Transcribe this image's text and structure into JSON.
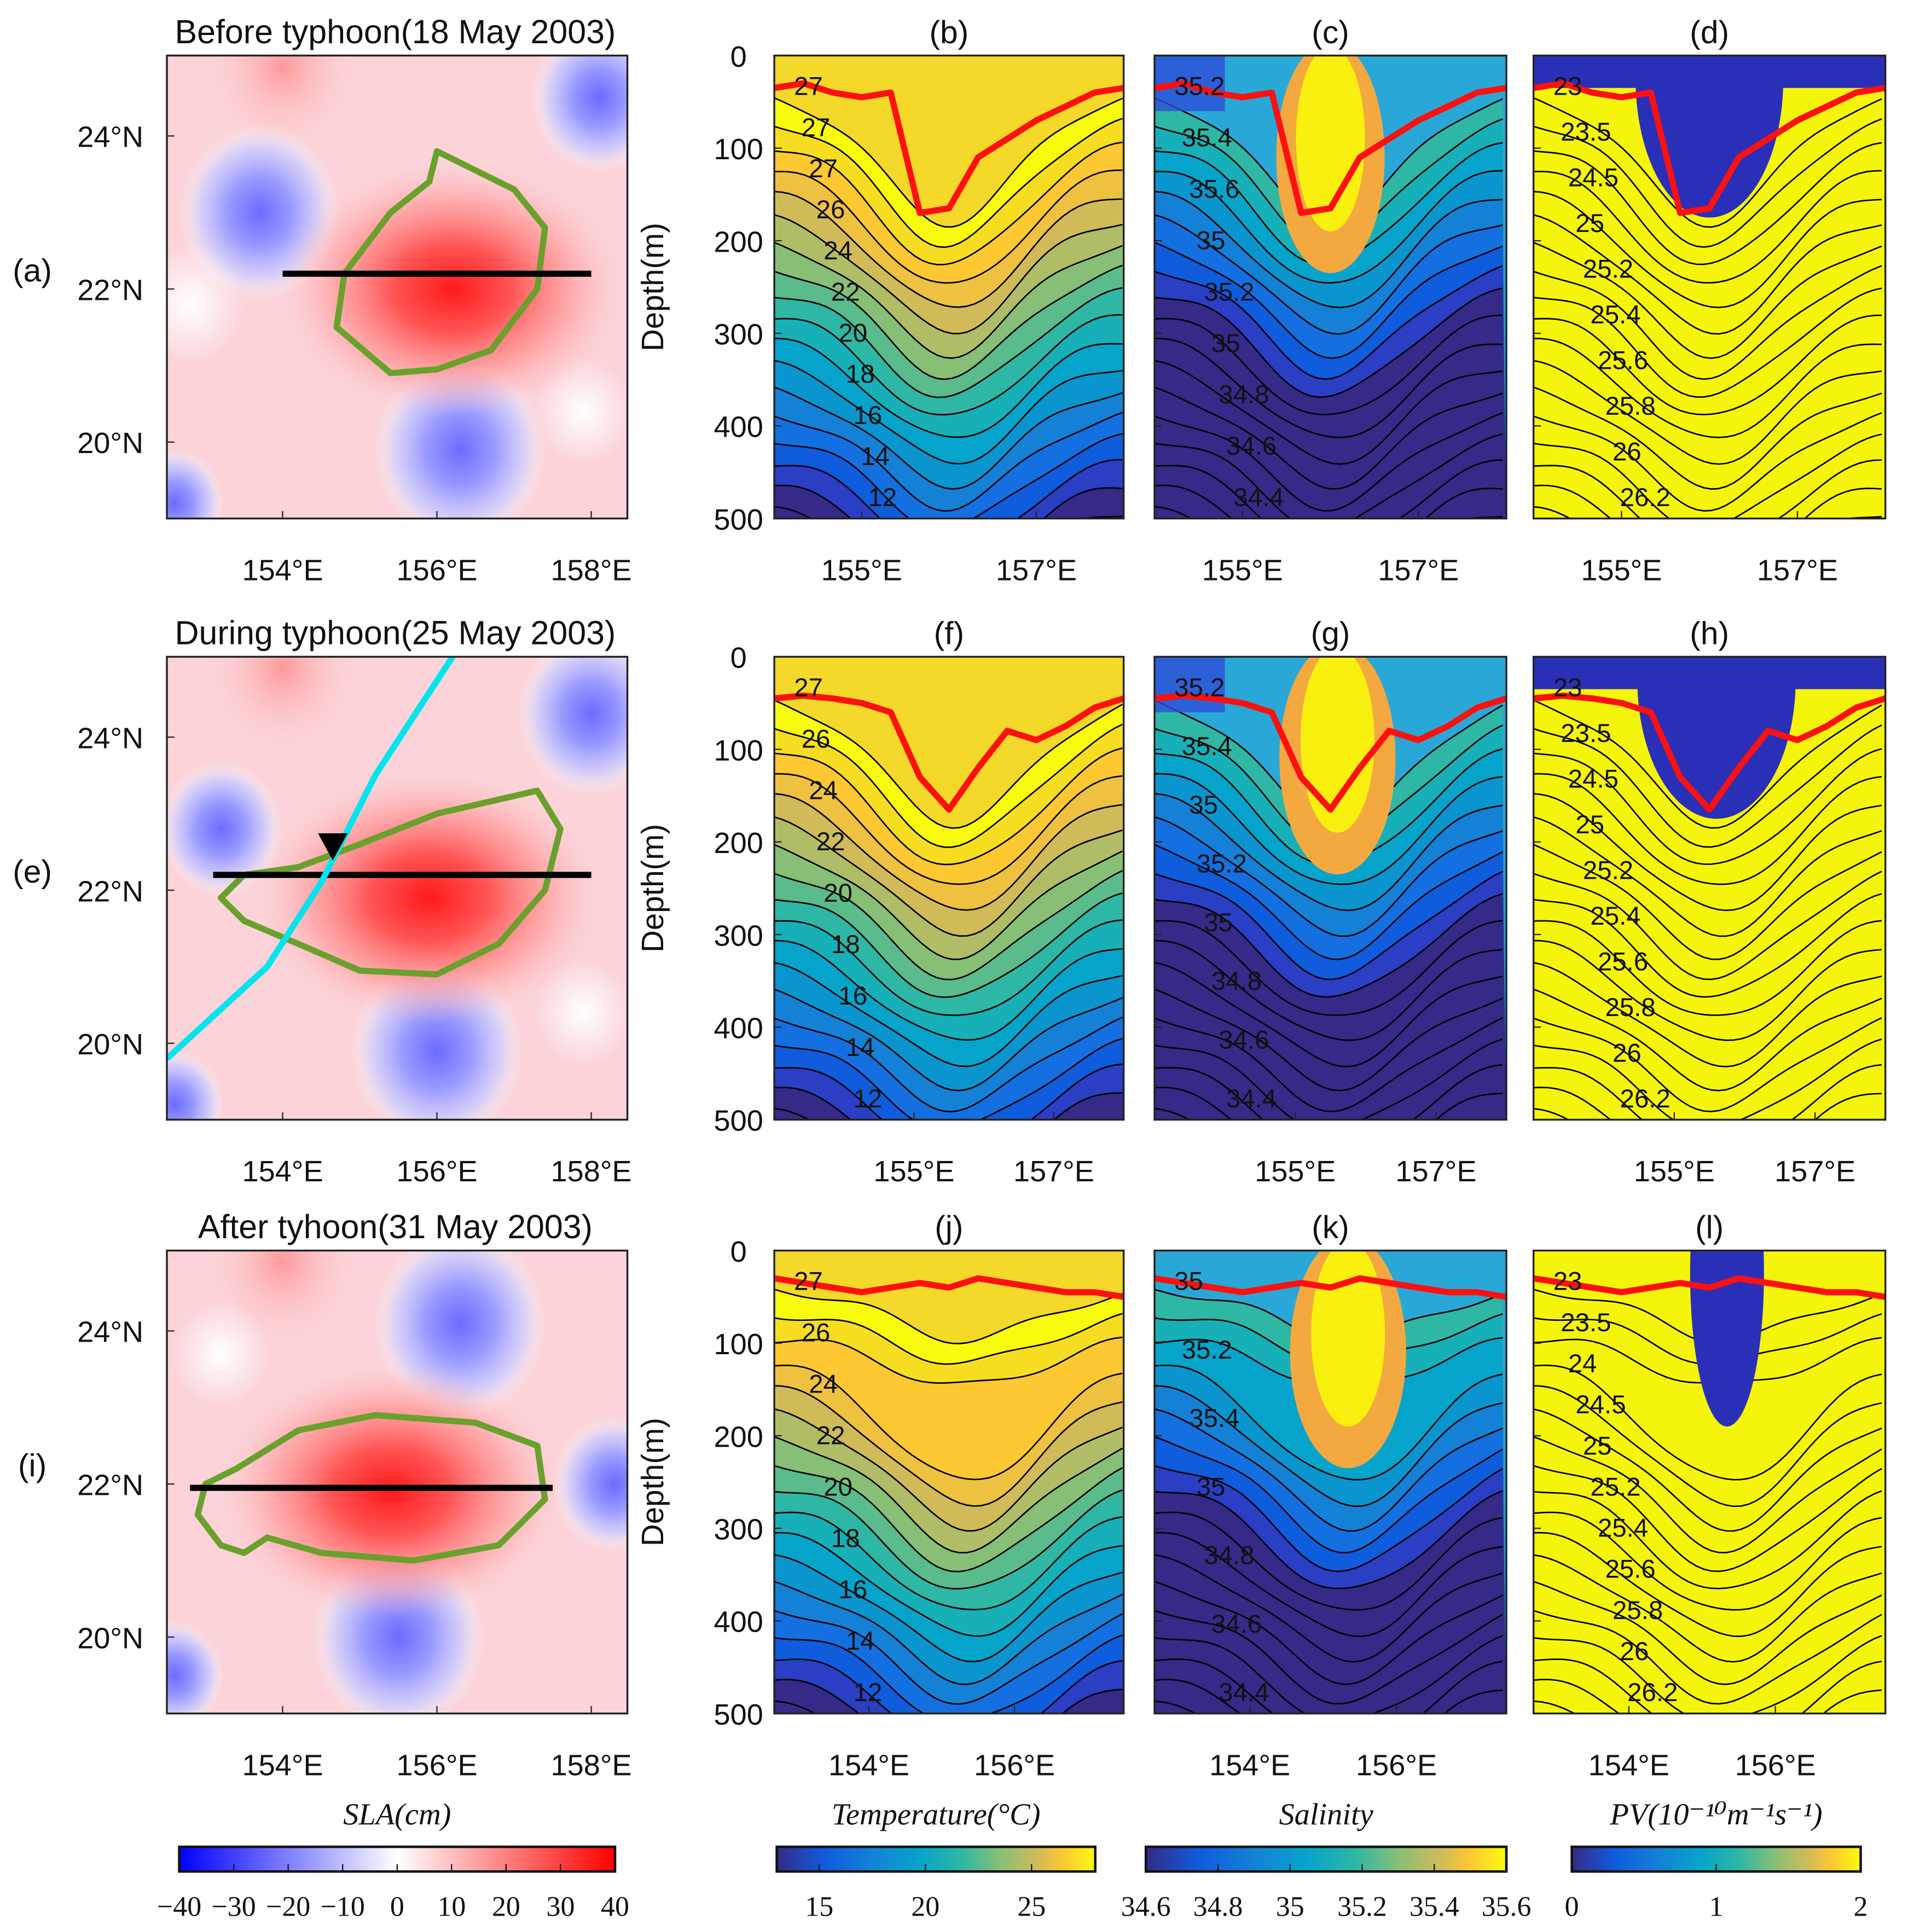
{
  "chart_data": {
    "type": "heatmap",
    "rows": [
      {
        "title": "Before typhoon(18 May 2003)",
        "map_label": "(a)",
        "section_labels": [
          "(b)",
          "(c)",
          "(d)"
        ],
        "section_lon_ticks": [
          "155°E",
          "157°E"
        ],
        "section_lon_range": [
          154.0,
          158.0
        ],
        "mld_depth_m": [
          35,
          30,
          40,
          45,
          40,
          170,
          165,
          110,
          90,
          70,
          55,
          40,
          35
        ],
        "temp_contours": [
          "27",
          "27",
          "27",
          "26",
          "24",
          "22",
          "20",
          "18",
          "16",
          "14",
          "12"
        ],
        "sal_contours": [
          "35.2",
          "35.4",
          "35.6",
          "35",
          "35.2",
          "35",
          "34.8",
          "34.6",
          "34.4"
        ],
        "pv_contours": [
          "23",
          "23.5",
          "24.5",
          "25",
          "25.2",
          "25.4",
          "25.6",
          "25.8",
          "26",
          "26.2"
        ]
      },
      {
        "title": "During typhoon(25 May 2003)",
        "map_label": "(e)",
        "section_labels": [
          "(f)",
          "(g)",
          "(h)"
        ],
        "section_lon_ticks": [
          "155°E",
          "157°E"
        ],
        "section_lon_range": [
          153.0,
          158.0
        ],
        "mld_depth_m": [
          45,
          42,
          45,
          50,
          60,
          130,
          165,
          120,
          80,
          90,
          75,
          55,
          45
        ],
        "temp_contours": [
          "27",
          "26",
          "24",
          "22",
          "20",
          "18",
          "16",
          "14",
          "12"
        ],
        "sal_contours": [
          "35.2",
          "35.4",
          "35",
          "35.2",
          "35",
          "34.8",
          "34.6",
          "34.4"
        ],
        "pv_contours": [
          "23",
          "23.5",
          "24.5",
          "25",
          "25.2",
          "25.4",
          "25.6",
          "25.8",
          "26",
          "26.2"
        ],
        "typhoon_track": "cyan"
      },
      {
        "title": "After tyhoon(31 May 2003)",
        "map_label": "(i)",
        "section_labels": [
          "(j)",
          "(k)",
          "(l)"
        ],
        "section_lon_ticks": [
          "154°E",
          "156°E"
        ],
        "section_lon_range": [
          152.7,
          157.5
        ],
        "mld_depth_m": [
          30,
          35,
          40,
          45,
          40,
          35,
          40,
          30,
          35,
          40,
          45,
          45,
          50
        ],
        "temp_contours": [
          "27",
          "26",
          "24",
          "22",
          "20",
          "18",
          "16",
          "14",
          "12"
        ],
        "sal_contours": [
          "35",
          "35.2",
          "35.4",
          "35",
          "34.8",
          "34.6",
          "34.4"
        ],
        "pv_contours": [
          "23",
          "23.5",
          "24",
          "24.5",
          "25",
          "25.2",
          "25.4",
          "25.6",
          "25.8",
          "26",
          "26.2"
        ]
      }
    ],
    "map_lat_ticks": [
      "24°N",
      "22°N",
      "20°N"
    ],
    "map_lon_ticks": [
      "154°E",
      "156°E",
      "158°E"
    ],
    "depth_ticks": [
      "0",
      "100",
      "200",
      "300",
      "400",
      "500"
    ],
    "depth_label": "Depth(m)",
    "colorbars": [
      {
        "label": "SLA(cm)",
        "ticks": [
          "−40",
          "−30",
          "−20",
          "−10",
          "0",
          "10",
          "20",
          "30",
          "40"
        ],
        "range": [
          -40,
          40
        ]
      },
      {
        "label": "Temperature(°C)",
        "ticks": [
          "15",
          "20",
          "25"
        ],
        "range": [
          13,
          28
        ]
      },
      {
        "label": "Salinity",
        "ticks": [
          "34.6",
          "34.8",
          "35",
          "35.2",
          "35.4",
          "35.6"
        ],
        "range": [
          34.6,
          35.6
        ]
      },
      {
        "label": "PV(10⁻¹⁰m⁻¹s⁻¹)",
        "ticks": [
          "0",
          "1",
          "2"
        ],
        "range": [
          0,
          2
        ]
      }
    ],
    "colors": {
      "mld": "#ff1010",
      "eddy_edge": "#6aa02c",
      "section_line": "#000000",
      "track": "#00e5ee"
    }
  }
}
